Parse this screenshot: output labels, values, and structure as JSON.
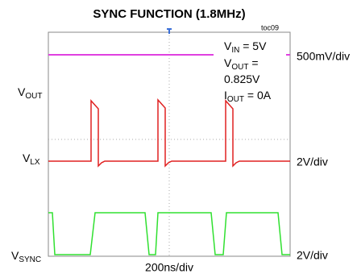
{
  "title": "SYNC FUNCTION (1.8MHz)",
  "figure_id": "toc09",
  "left_labels": [
    {
      "main": "V",
      "sub": "OUT"
    },
    {
      "main": "V",
      "sub": "LX"
    },
    {
      "main": "V",
      "sub": "SYNC"
    }
  ],
  "right_labels": [
    "500mV/div",
    "2V/div",
    "2V/div"
  ],
  "time_scale": "200ns/div",
  "conditions": [
    {
      "main": "V",
      "sub": "IN",
      "rest": " = 5V"
    },
    {
      "main": "V",
      "sub": "OUT",
      "rest": " ="
    },
    {
      "main": "0.825V"
    },
    {
      "main": "I",
      "sub": "OUT",
      "rest": " = 0A"
    }
  ]
}
